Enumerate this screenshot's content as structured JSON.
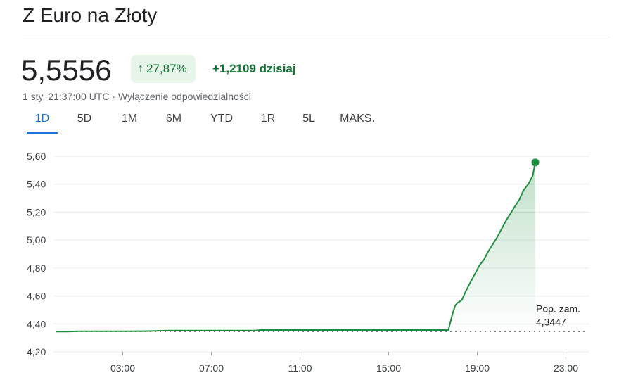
{
  "header": {
    "title": "Z Euro na Złoty"
  },
  "quote": {
    "price": "5,5556",
    "change_percent": "27,87%",
    "change_abs": "+1,2109 dzisiaj",
    "timestamp": "1 sty, 21:37:00 UTC",
    "separator": " · ",
    "disclaimer": "Wyłączenie odpowiedzialności"
  },
  "tabs": [
    {
      "label": "1D",
      "active": true
    },
    {
      "label": "5D",
      "active": false
    },
    {
      "label": "1M",
      "active": false
    },
    {
      "label": "6M",
      "active": false
    },
    {
      "label": "YTD",
      "active": false
    },
    {
      "label": "1R",
      "active": false
    },
    {
      "label": "5L",
      "active": false
    },
    {
      "label": "MAKS.",
      "active": false
    }
  ],
  "colors": {
    "up": "#1e8e3e",
    "badge_bg": "#e6f4ea",
    "tab_active": "#1a73e8",
    "grid": "#e8eaed"
  },
  "chart_data": {
    "type": "line",
    "ylim": [
      4.2,
      5.6
    ],
    "y_ticks": [
      "4,20",
      "4,40",
      "4,60",
      "4,80",
      "5,00",
      "5,20",
      "5,40",
      "5,60"
    ],
    "x_ticks": [
      "03:00",
      "07:00",
      "11:00",
      "15:00",
      "19:00",
      "23:00"
    ],
    "xlim_hours": [
      0.0,
      24.0
    ],
    "previous_close": {
      "label": "Pop. zam.",
      "value_text": "4,3447",
      "value": 4.3447
    },
    "last_point": {
      "hour": 21.62,
      "value": 5.5556
    },
    "series": [
      {
        "x": [
          0,
          0.5,
          1,
          2,
          3,
          4,
          4.5,
          5,
          6,
          7,
          8,
          9,
          9.2,
          10,
          11,
          12,
          13,
          14,
          15,
          16,
          17,
          17.7,
          17.8,
          17.9,
          18.0,
          18.1,
          18.3,
          18.5,
          18.7,
          18.9,
          19.1,
          19.3,
          19.5,
          19.7,
          19.9,
          20.1,
          20.3,
          20.5,
          20.7,
          20.9,
          21.1,
          21.3,
          21.5,
          21.62
        ],
        "y": [
          4.345,
          4.345,
          4.347,
          4.347,
          4.347,
          4.348,
          4.35,
          4.352,
          4.352,
          4.352,
          4.352,
          4.352,
          4.356,
          4.356,
          4.356,
          4.356,
          4.356,
          4.356,
          4.356,
          4.356,
          4.356,
          4.356,
          4.42,
          4.48,
          4.53,
          4.55,
          4.57,
          4.64,
          4.7,
          4.76,
          4.82,
          4.86,
          4.92,
          4.97,
          5.02,
          5.08,
          5.14,
          5.19,
          5.24,
          5.29,
          5.36,
          5.4,
          5.46,
          5.5556
        ]
      }
    ]
  }
}
